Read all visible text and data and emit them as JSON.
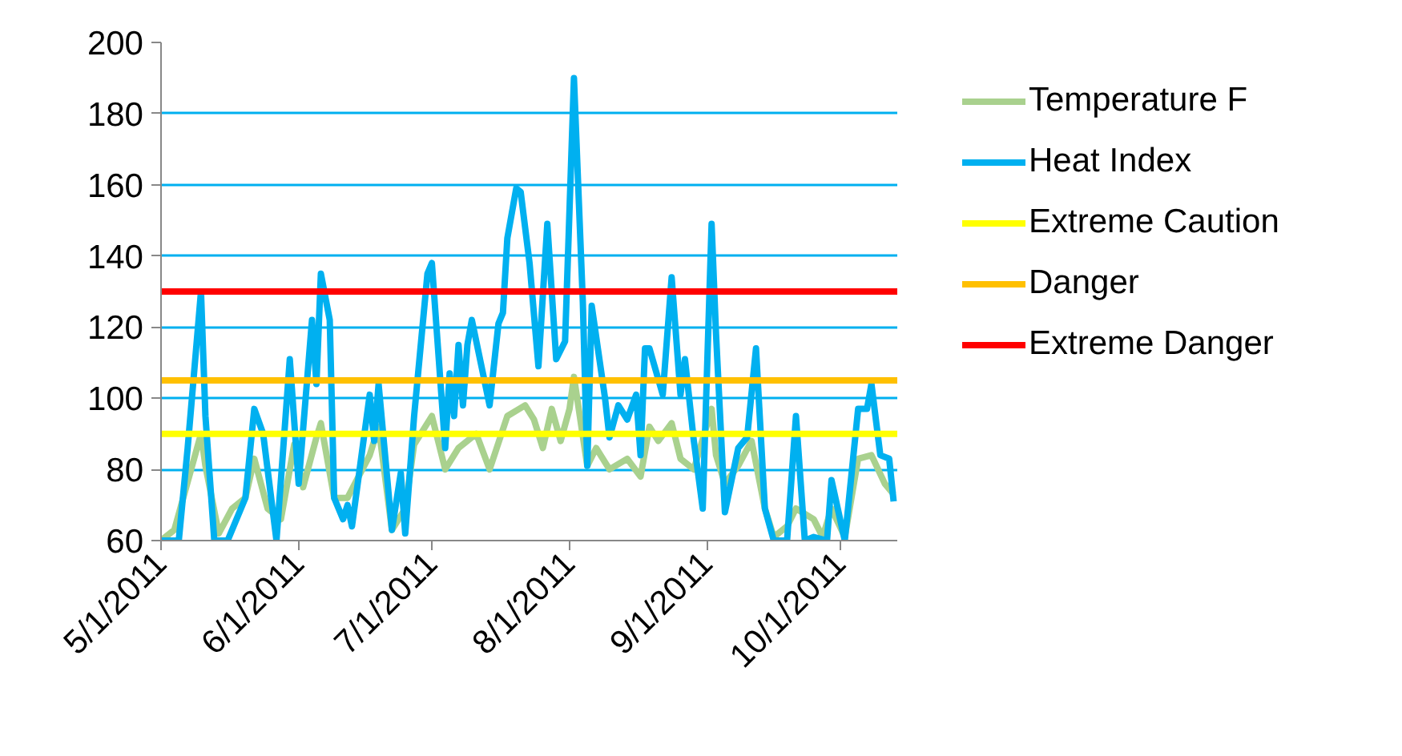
{
  "chart_data": {
    "type": "line",
    "xlim": [
      "2011-05-01",
      "2011-10-14"
    ],
    "ylim": [
      60,
      200
    ],
    "xticks": [
      {
        "value": "2011-05-01",
        "label": "5/1/2011"
      },
      {
        "value": "2011-06-01",
        "label": "6/1/2011"
      },
      {
        "value": "2011-07-01",
        "label": "7/1/2011"
      },
      {
        "value": "2011-08-01",
        "label": "8/1/2011"
      },
      {
        "value": "2011-09-01",
        "label": "9/1/2011"
      },
      {
        "value": "2011-10-01",
        "label": "10/1/2011"
      }
    ],
    "yticks": [
      60,
      80,
      100,
      120,
      140,
      160,
      180,
      200
    ],
    "grid": "y",
    "legend": "right",
    "marker": "none",
    "line_style": "solid",
    "series": [
      {
        "name": "Temperature F",
        "color": "#a9d18e",
        "x": [
          "2011-05-01",
          "2011-05-04",
          "2011-05-08",
          "2011-05-10",
          "2011-05-11",
          "2011-05-14",
          "2011-05-17",
          "2011-05-20",
          "2011-05-22",
          "2011-05-25",
          "2011-05-28",
          "2011-05-31",
          "2011-06-02",
          "2011-06-05",
          "2011-06-06",
          "2011-06-09",
          "2011-06-12",
          "2011-06-17",
          "2011-06-19",
          "2011-06-22",
          "2011-06-25",
          "2011-06-27",
          "2011-07-01",
          "2011-07-04",
          "2011-07-07",
          "2011-07-11",
          "2011-07-14",
          "2011-07-18",
          "2011-07-22",
          "2011-07-24",
          "2011-07-26",
          "2011-07-28",
          "2011-07-30",
          "2011-08-01",
          "2011-08-02",
          "2011-08-05",
          "2011-08-07",
          "2011-08-10",
          "2011-08-14",
          "2011-08-17",
          "2011-08-19",
          "2011-08-21",
          "2011-08-24",
          "2011-08-26",
          "2011-08-29",
          "2011-09-02",
          "2011-09-03",
          "2011-09-05",
          "2011-09-08",
          "2011-09-11",
          "2011-09-14",
          "2011-09-16",
          "2011-09-19",
          "2011-09-21",
          "2011-09-25",
          "2011-09-27",
          "2011-09-29",
          "2011-10-02",
          "2011-10-05",
          "2011-10-08",
          "2011-10-11",
          "2011-10-13"
        ],
        "values": [
          60,
          63,
          81,
          90,
          81,
          62,
          69,
          72,
          83,
          69,
          66,
          87,
          75,
          89,
          93,
          72,
          72,
          84,
          92,
          63,
          69,
          87,
          95,
          80,
          86,
          90,
          80,
          95,
          98,
          94,
          86,
          97,
          88,
          97,
          106,
          81,
          86,
          80,
          83,
          78,
          92,
          88,
          93,
          83,
          80,
          97,
          84,
          76,
          81,
          88,
          69,
          61,
          64,
          69,
          66,
          61,
          69,
          61,
          83,
          84,
          76,
          73
        ]
      },
      {
        "name": "Heat Index",
        "color": "#00b0f0",
        "x": [
          "2011-05-01",
          "2011-05-05",
          "2011-05-07",
          "2011-05-10",
          "2011-05-11",
          "2011-05-13",
          "2011-05-16",
          "2011-05-20",
          "2011-05-22",
          "2011-05-24",
          "2011-05-27",
          "2011-05-30",
          "2011-06-01",
          "2011-06-04",
          "2011-06-05",
          "2011-06-06",
          "2011-06-08",
          "2011-06-09",
          "2011-06-11",
          "2011-06-12",
          "2011-06-13",
          "2011-06-17",
          "2011-06-18",
          "2011-06-19",
          "2011-06-22",
          "2011-06-24",
          "2011-06-25",
          "2011-06-27",
          "2011-06-30",
          "2011-07-01",
          "2011-07-04",
          "2011-07-05",
          "2011-07-06",
          "2011-07-07",
          "2011-07-08",
          "2011-07-09",
          "2011-07-10",
          "2011-07-14",
          "2011-07-16",
          "2011-07-17",
          "2011-07-18",
          "2011-07-20",
          "2011-07-21",
          "2011-07-23",
          "2011-07-25",
          "2011-07-27",
          "2011-07-29",
          "2011-07-31",
          "2011-08-02",
          "2011-08-04",
          "2011-08-05",
          "2011-08-06",
          "2011-08-09",
          "2011-08-10",
          "2011-08-12",
          "2011-08-14",
          "2011-08-16",
          "2011-08-17",
          "2011-08-18",
          "2011-08-19",
          "2011-08-22",
          "2011-08-24",
          "2011-08-26",
          "2011-08-27",
          "2011-08-29",
          "2011-08-31",
          "2011-09-02",
          "2011-09-03",
          "2011-09-05",
          "2011-09-08",
          "2011-09-10",
          "2011-09-12",
          "2011-09-14",
          "2011-09-16",
          "2011-09-19",
          "2011-09-21",
          "2011-09-23",
          "2011-09-25",
          "2011-09-28",
          "2011-09-29",
          "2011-10-02",
          "2011-10-05",
          "2011-10-07",
          "2011-10-08",
          "2011-10-10",
          "2011-10-12",
          "2011-10-13"
        ],
        "values": [
          60,
          60,
          86,
          130,
          95,
          60,
          60,
          72,
          97,
          90,
          60,
          111,
          76,
          122,
          104,
          135,
          122,
          72,
          66,
          70,
          64,
          101,
          88,
          104,
          63,
          79,
          62,
          95,
          135,
          138,
          86,
          107,
          95,
          115,
          98,
          115,
          122,
          98,
          121,
          124,
          145,
          159,
          158,
          138,
          109,
          149,
          111,
          116,
          190,
          127,
          81,
          126,
          100,
          89,
          98,
          94,
          101,
          84,
          114,
          114,
          101,
          134,
          101,
          111,
          88,
          69,
          149,
          118,
          68,
          86,
          89,
          114,
          69,
          60,
          60,
          95,
          60,
          61,
          60,
          77,
          60,
          97,
          97,
          104,
          84,
          83,
          71
        ]
      }
    ],
    "ref_lines": [
      {
        "axis": "y",
        "value": 130,
        "label": "Extreme Danger",
        "color": "#ff0000"
      },
      {
        "axis": "y",
        "value": 105,
        "label": "Danger",
        "color": "#ffc000"
      },
      {
        "axis": "y",
        "value": 90,
        "label": "Extreme Caution",
        "color": "#ffff00"
      }
    ]
  }
}
